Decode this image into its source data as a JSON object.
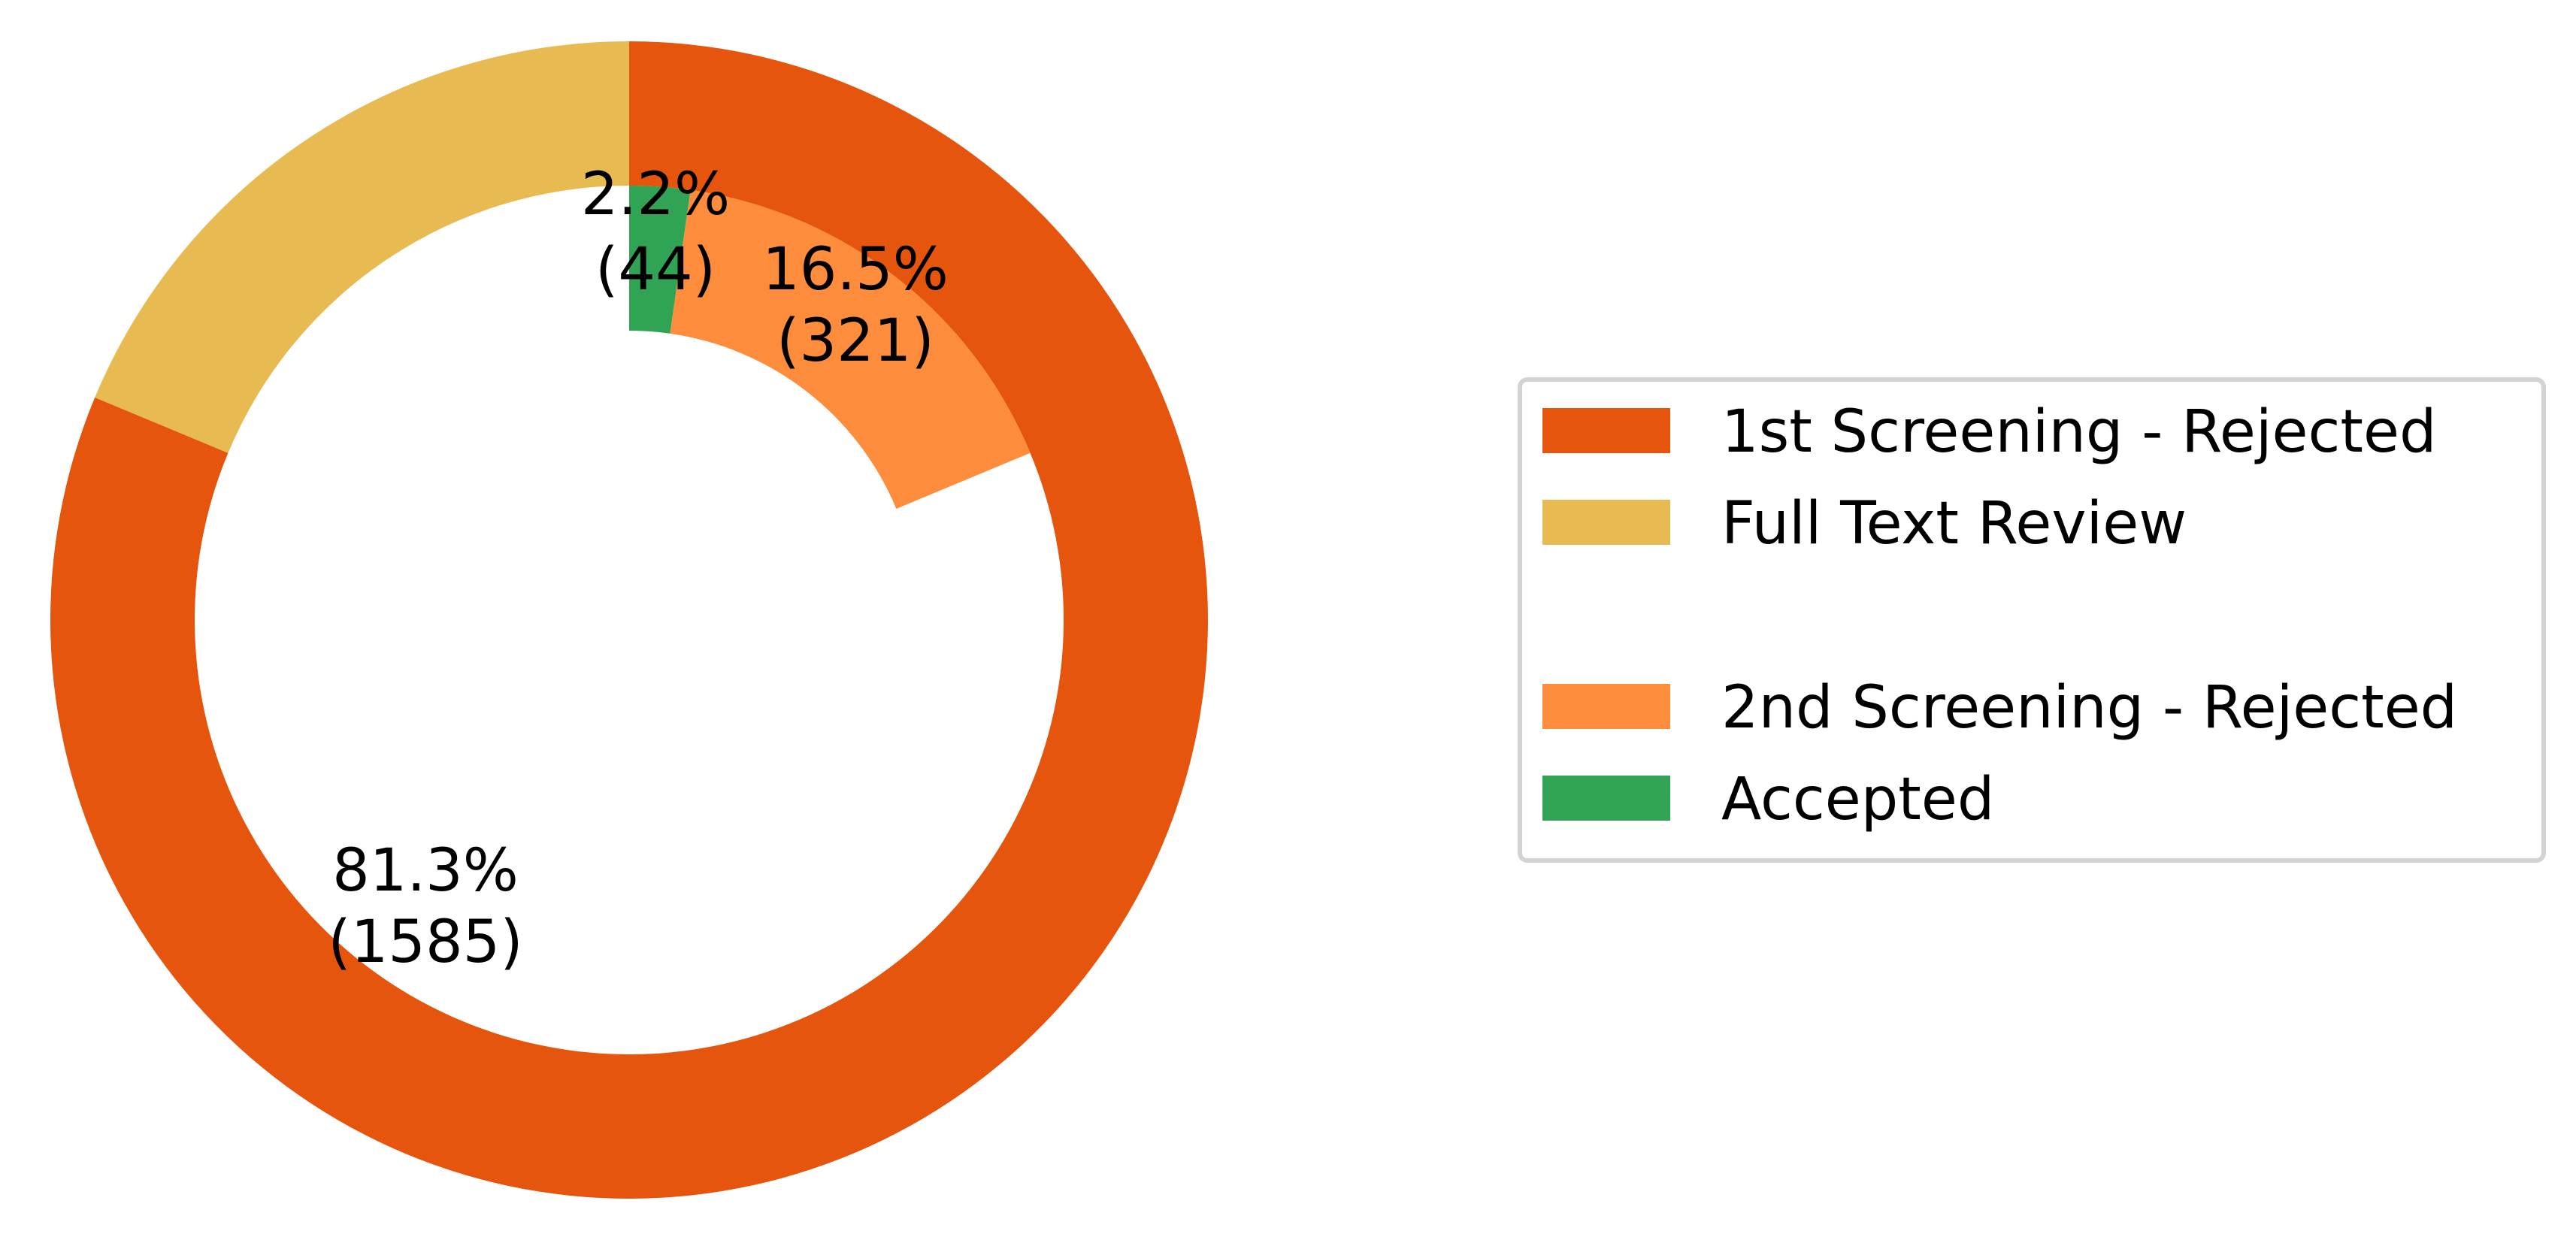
{
  "chart_data": {
    "type": "pie",
    "subtype": "nested-donut",
    "rings": [
      {
        "ring": "outer",
        "slices": [
          {
            "name": "1st Screening - Rejected",
            "value": 1585,
            "color": "#e6550d"
          },
          {
            "name": "Full Text Review",
            "value": 365,
            "color": "#e8ba52"
          }
        ]
      },
      {
        "ring": "inner",
        "slices": [
          {
            "name": "Accepted",
            "value": 44,
            "color": "#31a354"
          },
          {
            "name": "2nd Screening - Rejected",
            "value": 321,
            "color": "#fd8d3c"
          }
        ]
      }
    ],
    "slice_labels": [
      {
        "name": "Accepted",
        "percent": "2.2%",
        "count": "(44)"
      },
      {
        "name": "2nd Screening - Rejected",
        "percent": "16.5%",
        "count": "(321)"
      },
      {
        "name": "1st Screening - Rejected",
        "percent": "81.3%",
        "count": "(1585)"
      }
    ],
    "legend": {
      "placement": "center-right",
      "entries": [
        {
          "label": "1st Screening - Rejected",
          "color": "#e6550d"
        },
        {
          "label": "Full Text Review",
          "color": "#e8ba52"
        },
        {
          "label": "",
          "color": ""
        },
        {
          "label": "2nd Screening - Rejected",
          "color": "#fd8d3c"
        },
        {
          "label": "Accepted",
          "color": "#31a354"
        }
      ]
    },
    "total": 1950,
    "start_angle": "top, clockwise"
  }
}
